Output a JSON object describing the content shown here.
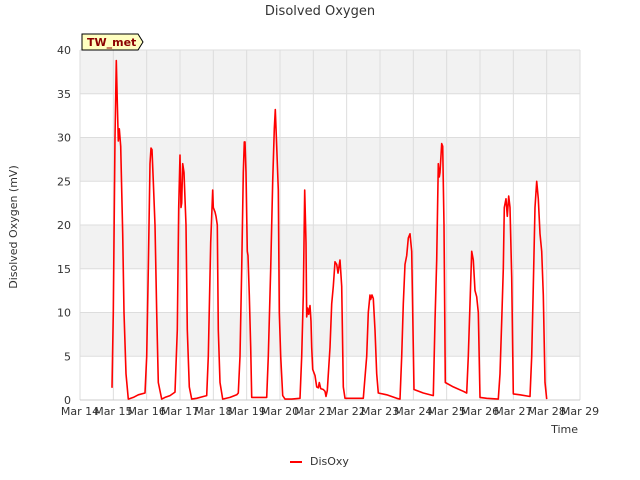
{
  "chart_data": {
    "type": "line",
    "title": "Disolved Oxygen",
    "xlabel": "Time",
    "ylabel": "Disolved Oxygen (mV)",
    "site_badge": "TW_met",
    "x_tick_labels": [
      "Mar 14",
      "Mar 15",
      "Mar 16",
      "Mar 17",
      "Mar 18",
      "Mar 19",
      "Mar 20",
      "Mar 21",
      "Mar 22",
      "Mar 23",
      "Mar 24",
      "Mar 25",
      "Mar 26",
      "Mar 27",
      "Mar 28",
      "Mar 29"
    ],
    "xlim": [
      0,
      15
    ],
    "ylim": [
      0,
      40
    ],
    "y_ticks": [
      0,
      5,
      10,
      15,
      20,
      25,
      30,
      35,
      40
    ],
    "grid": true,
    "legend_position": "bottom-center",
    "colors": {
      "series": "#ff0000",
      "band": "#f2f2f2",
      "grid": "#dddddd",
      "badge_fill": "#ffffc0"
    },
    "series": [
      {
        "name": "DisOxy",
        "x_unit": "days since Mar 14",
        "points": [
          [
            0.96,
            1.4
          ],
          [
            1.0,
            10
          ],
          [
            1.05,
            30
          ],
          [
            1.09,
            38.8
          ],
          [
            1.12,
            34
          ],
          [
            1.15,
            29.6
          ],
          [
            1.18,
            31
          ],
          [
            1.22,
            29
          ],
          [
            1.28,
            19
          ],
          [
            1.32,
            10
          ],
          [
            1.38,
            3
          ],
          [
            1.45,
            0.1
          ],
          [
            1.6,
            0.3
          ],
          [
            1.75,
            0.6
          ],
          [
            1.95,
            0.8
          ],
          [
            2.0,
            5
          ],
          [
            2.05,
            15
          ],
          [
            2.1,
            27
          ],
          [
            2.13,
            28.8
          ],
          [
            2.16,
            28.6
          ],
          [
            2.2,
            25
          ],
          [
            2.25,
            20
          ],
          [
            2.3,
            10
          ],
          [
            2.35,
            2
          ],
          [
            2.45,
            0.1
          ],
          [
            2.55,
            0.3
          ],
          [
            2.7,
            0.5
          ],
          [
            2.85,
            0.9
          ],
          [
            2.92,
            8
          ],
          [
            2.96,
            22
          ],
          [
            3.0,
            28
          ],
          [
            3.03,
            22
          ],
          [
            3.05,
            22.5
          ],
          [
            3.08,
            27
          ],
          [
            3.12,
            26
          ],
          [
            3.15,
            23
          ],
          [
            3.18,
            20
          ],
          [
            3.22,
            8
          ],
          [
            3.28,
            1.5
          ],
          [
            3.35,
            0.1
          ],
          [
            3.5,
            0.2
          ],
          [
            3.7,
            0.4
          ],
          [
            3.8,
            0.5
          ],
          [
            3.85,
            5
          ],
          [
            3.92,
            18
          ],
          [
            3.98,
            24
          ],
          [
            4.0,
            22
          ],
          [
            4.05,
            21.5
          ],
          [
            4.08,
            21
          ],
          [
            4.12,
            20
          ],
          [
            4.15,
            8
          ],
          [
            4.2,
            2
          ],
          [
            4.28,
            0.1
          ],
          [
            4.5,
            0.3
          ],
          [
            4.7,
            0.6
          ],
          [
            4.75,
            0.8
          ],
          [
            4.8,
            5
          ],
          [
            4.85,
            15
          ],
          [
            4.9,
            26
          ],
          [
            4.93,
            29.5
          ],
          [
            4.95,
            29.5
          ],
          [
            4.98,
            26
          ],
          [
            5.02,
            17
          ],
          [
            5.04,
            16.5
          ],
          [
            5.08,
            12
          ],
          [
            5.12,
            6
          ],
          [
            5.15,
            0.3
          ],
          [
            5.3,
            0.3
          ],
          [
            5.6,
            0.3
          ],
          [
            5.65,
            5
          ],
          [
            5.72,
            15
          ],
          [
            5.78,
            25
          ],
          [
            5.83,
            31
          ],
          [
            5.86,
            33.2
          ],
          [
            5.9,
            29
          ],
          [
            5.95,
            24
          ],
          [
            5.98,
            10
          ],
          [
            6.02,
            5
          ],
          [
            6.08,
            0.5
          ],
          [
            6.15,
            0.1
          ],
          [
            6.35,
            0.1
          ],
          [
            6.6,
            0.2
          ],
          [
            6.65,
            5
          ],
          [
            6.7,
            12
          ],
          [
            6.74,
            24
          ],
          [
            6.78,
            18
          ],
          [
            6.8,
            9.5
          ],
          [
            6.83,
            10.5
          ],
          [
            6.86,
            9.8
          ],
          [
            6.9,
            10.8
          ],
          [
            6.93,
            9
          ],
          [
            6.95,
            6
          ],
          [
            6.98,
            3.5
          ],
          [
            7.05,
            2.8
          ],
          [
            7.1,
            1.5
          ],
          [
            7.15,
            1.4
          ],
          [
            7.18,
            2
          ],
          [
            7.22,
            1.3
          ],
          [
            7.3,
            1.2
          ],
          [
            7.35,
            1.0
          ],
          [
            7.38,
            0.4
          ],
          [
            7.42,
            1.1
          ],
          [
            7.5,
            6
          ],
          [
            7.55,
            11
          ],
          [
            7.6,
            13
          ],
          [
            7.65,
            15.8
          ],
          [
            7.7,
            15.5
          ],
          [
            7.74,
            14.5
          ],
          [
            7.8,
            16
          ],
          [
            7.85,
            13
          ],
          [
            7.9,
            1.5
          ],
          [
            7.95,
            0.2
          ],
          [
            8.2,
            0.2
          ],
          [
            8.5,
            0.2
          ],
          [
            8.6,
            5
          ],
          [
            8.65,
            10
          ],
          [
            8.7,
            12
          ],
          [
            8.72,
            11.5
          ],
          [
            8.76,
            12
          ],
          [
            8.8,
            11.6
          ],
          [
            8.85,
            8
          ],
          [
            8.9,
            3
          ],
          [
            8.95,
            0.8
          ],
          [
            9.2,
            0.6
          ],
          [
            9.5,
            0.2
          ],
          [
            9.6,
            0.1
          ],
          [
            9.65,
            5
          ],
          [
            9.7,
            11
          ],
          [
            9.75,
            15.5
          ],
          [
            9.8,
            16.5
          ],
          [
            9.85,
            18.5
          ],
          [
            9.9,
            19
          ],
          [
            9.95,
            17
          ],
          [
            10.02,
            1.2
          ],
          [
            10.3,
            0.8
          ],
          [
            10.6,
            0.5
          ],
          [
            10.65,
            9
          ],
          [
            10.7,
            16
          ],
          [
            10.75,
            27
          ],
          [
            10.78,
            25.5
          ],
          [
            10.8,
            26
          ],
          [
            10.85,
            29.3
          ],
          [
            10.88,
            29
          ],
          [
            10.92,
            20
          ],
          [
            10.96,
            2
          ],
          [
            11.2,
            1.5
          ],
          [
            11.5,
            1.0
          ],
          [
            11.6,
            0.8
          ],
          [
            11.65,
            5
          ],
          [
            11.7,
            11
          ],
          [
            11.75,
            17
          ],
          [
            11.8,
            16
          ],
          [
            11.85,
            12.5
          ],
          [
            11.9,
            11.8
          ],
          [
            11.95,
            10
          ],
          [
            12.0,
            0.3
          ],
          [
            12.2,
            0.2
          ],
          [
            12.55,
            0.1
          ],
          [
            12.6,
            3
          ],
          [
            12.65,
            9
          ],
          [
            12.7,
            15
          ],
          [
            12.73,
            22
          ],
          [
            12.78,
            23
          ],
          [
            12.82,
            21
          ],
          [
            12.86,
            23.3
          ],
          [
            12.9,
            22
          ],
          [
            12.95,
            14
          ],
          [
            13.0,
            0.7
          ],
          [
            13.2,
            0.6
          ],
          [
            13.5,
            0.4
          ],
          [
            13.55,
            5
          ],
          [
            13.6,
            13
          ],
          [
            13.65,
            22
          ],
          [
            13.7,
            25
          ],
          [
            13.75,
            23
          ],
          [
            13.8,
            19
          ],
          [
            13.85,
            17
          ],
          [
            13.9,
            12
          ],
          [
            13.95,
            2
          ],
          [
            14.0,
            0.1
          ]
        ]
      }
    ]
  }
}
